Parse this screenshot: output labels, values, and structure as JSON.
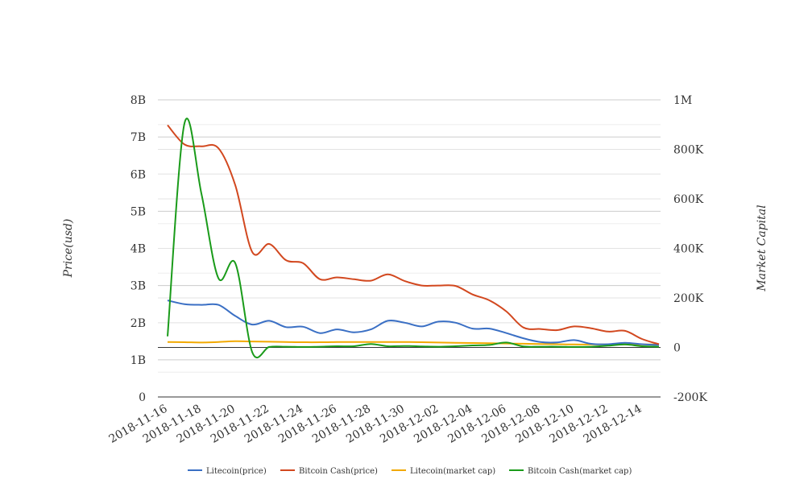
{
  "chart_data": {
    "type": "line",
    "title": "",
    "x": [
      "2018-11-16",
      "2018-11-17",
      "2018-11-18",
      "2018-11-19",
      "2018-11-20",
      "2018-11-21",
      "2018-11-22",
      "2018-11-23",
      "2018-11-24",
      "2018-11-25",
      "2018-11-26",
      "2018-11-27",
      "2018-11-28",
      "2018-11-29",
      "2018-11-30",
      "2018-12-01",
      "2018-12-02",
      "2018-12-03",
      "2018-12-04",
      "2018-12-05",
      "2018-12-06",
      "2018-12-07",
      "2018-12-08",
      "2018-12-09",
      "2018-12-10",
      "2018-12-11",
      "2018-12-12",
      "2018-12-13",
      "2018-12-14",
      "2018-12-15"
    ],
    "x_tick_labels": [
      "2018-11-16",
      "2018-11-18",
      "2018-11-20",
      "2018-11-22",
      "2018-11-24",
      "2018-11-26",
      "2018-11-28",
      "2018-11-30",
      "2018-12-02",
      "2018-12-04",
      "2018-12-06",
      "2018-12-08",
      "2018-12-10",
      "2018-12-12",
      "2018-12-14"
    ],
    "y_left": {
      "label": "Price(usd)",
      "min": 0,
      "max": 8000000000,
      "ticks": [
        0,
        1000000000,
        2000000000,
        3000000000,
        4000000000,
        5000000000,
        6000000000,
        7000000000,
        8000000000
      ],
      "tick_labels": [
        "0",
        "1B",
        "2B",
        "3B",
        "4B",
        "5B",
        "6B",
        "7B",
        "8B"
      ]
    },
    "y_right": {
      "label": "Market Capital",
      "min": -200000,
      "max": 1000000,
      "ticks": [
        -200000,
        0,
        200000,
        400000,
        600000,
        800000,
        1000000
      ],
      "tick_labels": [
        "-200K",
        "0",
        "200K",
        "400K",
        "600K",
        "800K",
        "1M"
      ]
    },
    "grid": true,
    "legend_position": "bottom",
    "series": [
      {
        "name": "Litecoin(price)",
        "axis": "left",
        "color": "#3a6fc4",
        "values": [
          2600000000,
          2500000000,
          2480000000,
          2480000000,
          2180000000,
          1950000000,
          2050000000,
          1880000000,
          1890000000,
          1720000000,
          1820000000,
          1740000000,
          1820000000,
          2050000000,
          2000000000,
          1900000000,
          2030000000,
          2000000000,
          1840000000,
          1840000000,
          1720000000,
          1580000000,
          1480000000,
          1470000000,
          1530000000,
          1430000000,
          1420000000,
          1460000000,
          1420000000,
          1400000000
        ]
      },
      {
        "name": "Bitcoin Cash(price)",
        "axis": "left",
        "color": "#d2481f",
        "values": [
          7320000000,
          6800000000,
          6750000000,
          6700000000,
          5700000000,
          3900000000,
          4120000000,
          3680000000,
          3600000000,
          3170000000,
          3220000000,
          3170000000,
          3130000000,
          3300000000,
          3120000000,
          3000000000,
          3000000000,
          2990000000,
          2760000000,
          2600000000,
          2300000000,
          1870000000,
          1830000000,
          1800000000,
          1900000000,
          1850000000,
          1760000000,
          1780000000,
          1560000000,
          1420000000
        ]
      },
      {
        "name": "Litecoin(market cap)",
        "axis": "right",
        "color": "#f2a900",
        "values": [
          22000,
          21000,
          20000,
          22000,
          25000,
          24000,
          23000,
          22000,
          21000,
          21000,
          22000,
          22000,
          22000,
          22000,
          22000,
          21000,
          20000,
          19000,
          18000,
          17000,
          16000,
          15000,
          14000,
          13000,
          12000,
          12000,
          12000,
          12000,
          12000,
          12000
        ]
      },
      {
        "name": "Bitcoin Cash(market cap)",
        "axis": "right",
        "color": "#1a9b1a",
        "values": [
          45000,
          905000,
          620000,
          280000,
          340000,
          -20000,
          2000,
          3000,
          2000,
          3000,
          5000,
          5000,
          14000,
          5000,
          6000,
          4000,
          3000,
          5000,
          8000,
          10000,
          20000,
          4000,
          3000,
          3000,
          2000,
          3000,
          7000,
          12000,
          5000,
          3000
        ]
      }
    ]
  }
}
